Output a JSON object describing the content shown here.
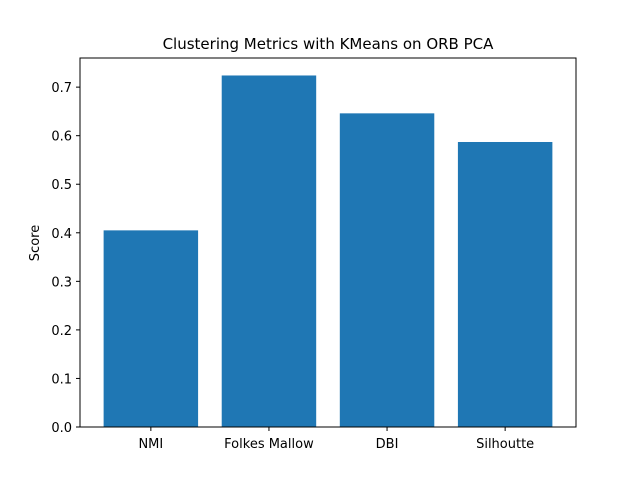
{
  "chart_data": {
    "type": "bar",
    "title": "Clustering Metrics with KMeans on ORB PCA",
    "xlabel": "",
    "ylabel": "Score",
    "categories": [
      "NMI",
      "Folkes Mallow",
      "DBI",
      "Silhoutte"
    ],
    "values": [
      0.405,
      0.724,
      0.646,
      0.587
    ],
    "ylim": [
      0,
      0.76
    ],
    "yticks": [
      "0.0",
      "0.1",
      "0.2",
      "0.3",
      "0.4",
      "0.5",
      "0.6",
      "0.7"
    ],
    "bar_color": "#1f77b4",
    "grid": false
  }
}
